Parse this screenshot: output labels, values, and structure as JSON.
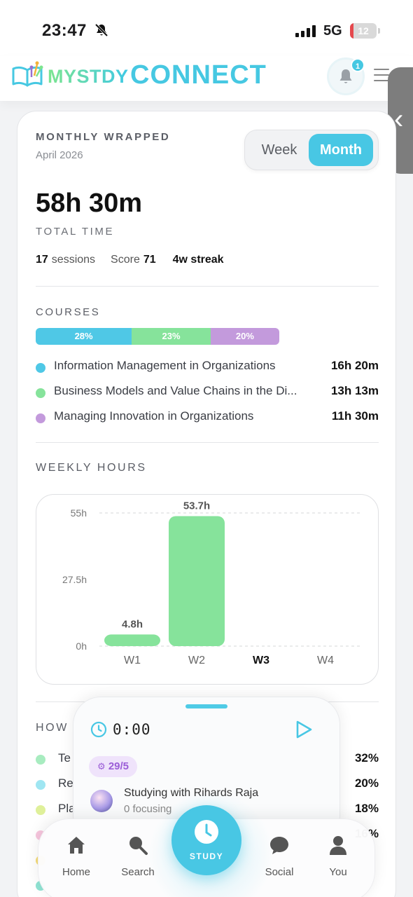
{
  "status_bar": {
    "time": "23:47",
    "network": "5G",
    "battery": "12",
    "battery_level": 0.12,
    "mute_icon": "bell-slash-icon"
  },
  "header": {
    "logo_text_1": "MYSTDY",
    "logo_text_2": "CONNECT",
    "notification_count": "1"
  },
  "wrapped": {
    "kicker": "MONTHLY WRAPPED",
    "period": "April 2026",
    "toggle": {
      "week": "Week",
      "month": "Month",
      "selected": "Month"
    },
    "total_time": "58h 30m",
    "total_label": "TOTAL TIME",
    "sessions_value": "17",
    "sessions_label": "sessions",
    "score_label": "Score",
    "score_value": "71",
    "streak": "4w streak"
  },
  "courses": {
    "heading": "COURSES",
    "bar": [
      {
        "label": "28%",
        "value": 28,
        "color": "#4fc8e6"
      },
      {
        "label": "23%",
        "value": 23,
        "color": "#86e39b"
      },
      {
        "label": "20%",
        "value": 20,
        "color": "#c39adc"
      }
    ],
    "items": [
      {
        "name": "Information Management in Organizations",
        "time": "16h 20m",
        "color": "#4fc8e6"
      },
      {
        "name": "Business Models and Value Chains in the Di...",
        "time": "13h 13m",
        "color": "#86e39b"
      },
      {
        "name": "Managing Innovation in Organizations",
        "time": "11h 30m",
        "color": "#c39adc"
      }
    ]
  },
  "weekly": {
    "heading": "WEEKLY HOURS"
  },
  "chart_data": {
    "type": "bar",
    "categories": [
      "W1",
      "W2",
      "W3",
      "W4"
    ],
    "values": [
      4.8,
      53.7,
      0,
      0
    ],
    "data_labels": [
      "4.8h",
      "53.7h",
      "",
      ""
    ],
    "y_ticks": [
      "0h",
      "27.5h",
      "55h"
    ],
    "ylim": [
      0,
      55
    ],
    "current_category": "W3",
    "bar_color": "#86e39b",
    "grid": "dashed"
  },
  "how": {
    "heading": "HOW",
    "items": [
      {
        "name": "Te",
        "pct": "32%",
        "color": "#a8ecc0"
      },
      {
        "name": "Re",
        "pct": "20%",
        "color": "#9fe6f2"
      },
      {
        "name": "Pla",
        "pct": "18%",
        "color": "#dff09a"
      },
      {
        "name": "",
        "pct": "16%",
        "color": "#f7c6de"
      },
      {
        "name": "",
        "pct": "",
        "color": "#f5dc7a"
      },
      {
        "name": "",
        "pct": "",
        "color": "#8fe3d3"
      }
    ]
  },
  "timer": {
    "count": "0:00",
    "chip": "29/5",
    "studying_with": "Studying with Rihards Raja",
    "focusing": "0 focusing"
  },
  "nav": {
    "home": "Home",
    "search": "Search",
    "study": "STUDY",
    "social": "Social",
    "you": "You"
  }
}
